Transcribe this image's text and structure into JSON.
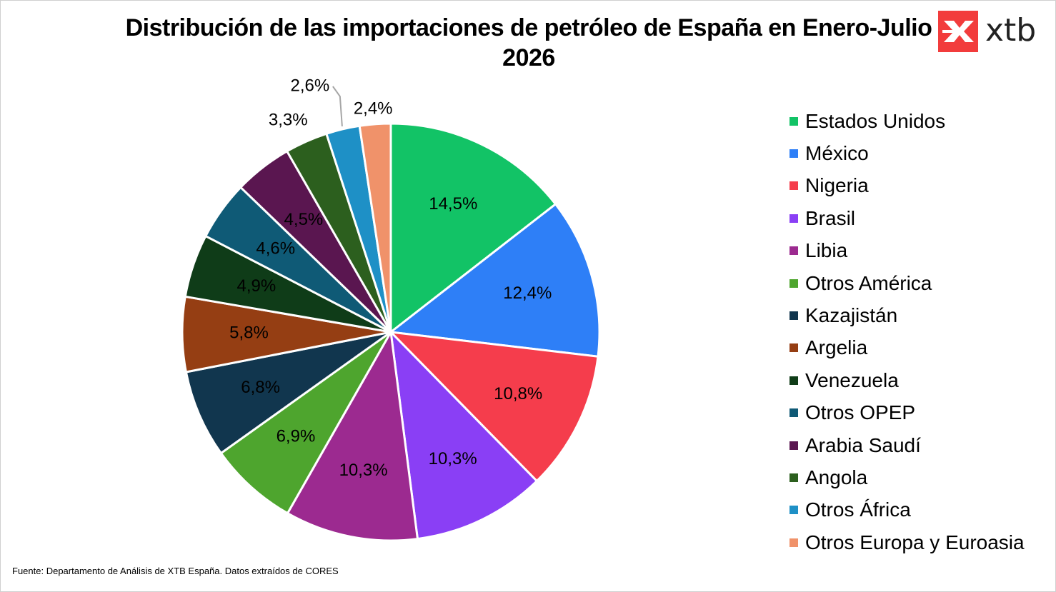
{
  "title": "Distribución de las importaciones de petróleo de España en Enero-Julio 2026",
  "brand": {
    "name": "xtb",
    "color": "#f23c3c",
    "icon": "xtb-x-logo-icon"
  },
  "source": "Fuente: Departamento de Análisis de XTB España. Datos extraídos de CORES",
  "chart_data": {
    "type": "pie",
    "title": "Distribución de las importaciones de petróleo de España en Enero-Julio 2026",
    "legend_position": "right",
    "start_angle": "12 o'clock, clockwise",
    "categories": [
      "Estados Unidos",
      "México",
      "Nigeria",
      "Brasil",
      "Libia",
      "Otros América",
      "Kazajistán",
      "Argelia",
      "Venezuela",
      "Otros OPEP",
      "Arabia Saudí",
      "Angola",
      "Otros África",
      "Otros Europa y Euroasia"
    ],
    "values": [
      14.5,
      12.4,
      10.8,
      10.3,
      10.3,
      6.9,
      6.8,
      5.8,
      4.9,
      4.6,
      4.5,
      3.3,
      2.6,
      2.4
    ],
    "labels": [
      "14,5%",
      "12,4%",
      "10,8%",
      "10,3%",
      "10,3%",
      "6,9%",
      "6,8%",
      "5,8%",
      "4,9%",
      "4,6%",
      "4,5%",
      "3,3%",
      "2,6%",
      "2,4%"
    ],
    "colors": [
      "#12c366",
      "#2e7ff7",
      "#f53d4c",
      "#8a3ff5",
      "#9c2a90",
      "#4ea52e",
      "#11364e",
      "#953e13",
      "#0f3c18",
      "#0f5a76",
      "#5a1650",
      "#2c5f1e",
      "#1e90c6",
      "#f0926a"
    ]
  }
}
